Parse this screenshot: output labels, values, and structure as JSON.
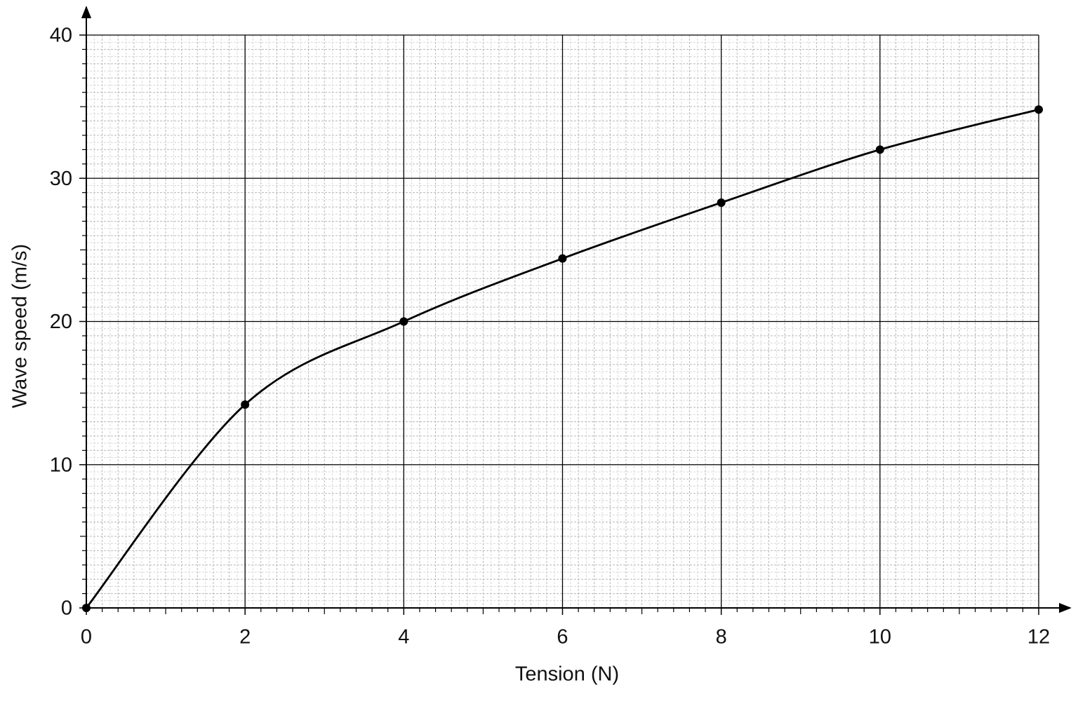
{
  "chart_data": {
    "type": "line",
    "smooth": true,
    "x_label": "Tension (N)",
    "y_label": "Wave speed (m/s)",
    "x": [
      0,
      2,
      4,
      6,
      8,
      10,
      12
    ],
    "series": [
      {
        "name": null,
        "color": "#000000",
        "values": [
          0,
          14.2,
          20,
          24.4,
          28.3,
          32,
          34.8
        ]
      }
    ],
    "xlim": [
      0,
      12
    ],
    "xticks": [
      0,
      2,
      4,
      6,
      8,
      10,
      12
    ],
    "ylim": [
      0,
      40
    ],
    "yticks": [
      0,
      10,
      20,
      30,
      40
    ],
    "grid": true,
    "markers": true
  }
}
